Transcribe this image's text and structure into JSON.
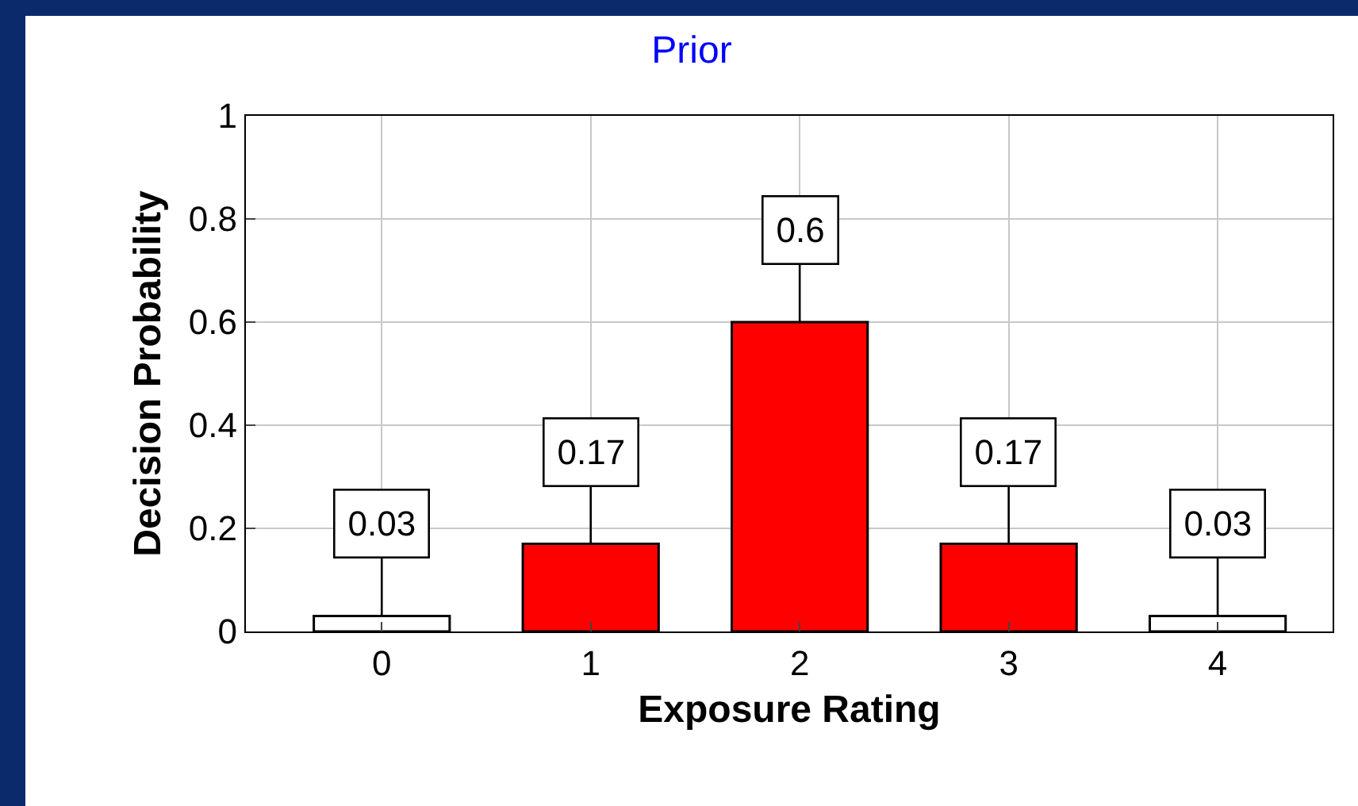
{
  "chart_data": {
    "type": "bar",
    "title": "Prior",
    "xlabel": "Exposure Rating",
    "ylabel": "Decision Probability",
    "x": [
      0,
      1,
      2,
      3,
      4
    ],
    "values": [
      0.03,
      0.17,
      0.6,
      0.17,
      0.03
    ],
    "colors": [
      "#ffffff",
      "#ff0000",
      "#ff0000",
      "#ff0000",
      "#ffffff"
    ],
    "xlim": [
      -0.65,
      4.55
    ],
    "xticks": [
      0,
      1,
      2,
      3,
      4
    ],
    "ylim": [
      0,
      1
    ],
    "yticks": [
      0,
      0.2,
      0.4,
      0.6,
      0.8,
      1
    ],
    "grid": true,
    "data_labels": true
  }
}
